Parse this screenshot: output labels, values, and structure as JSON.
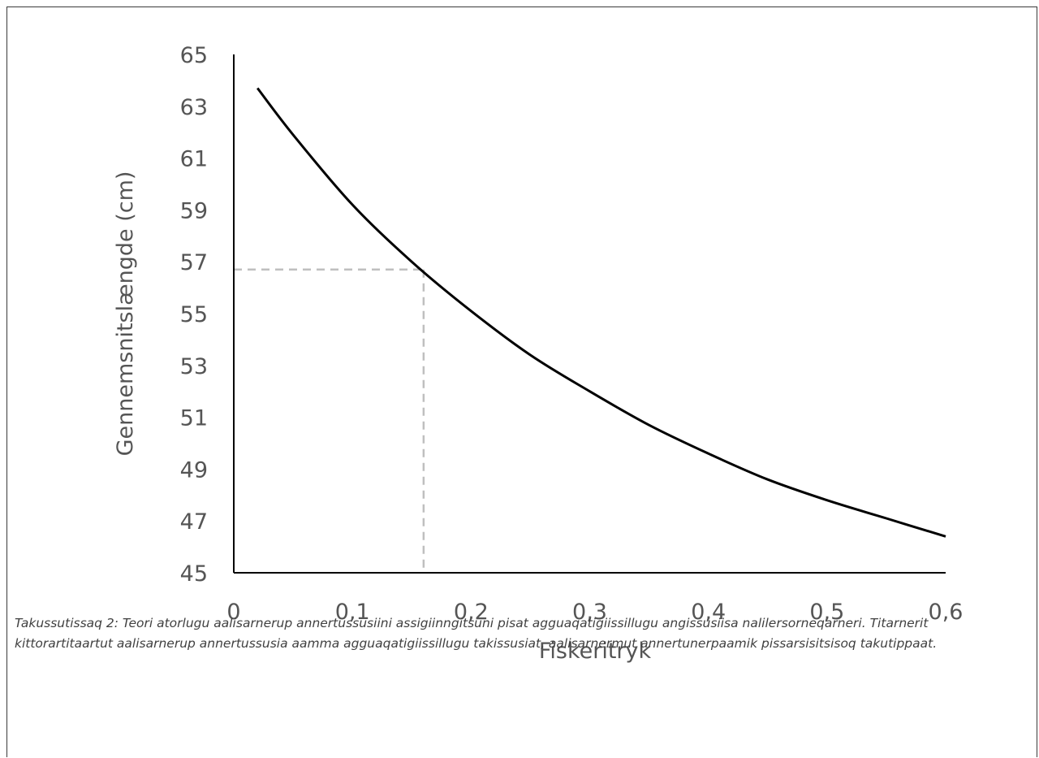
{
  "chart_data": {
    "type": "line",
    "xlabel": "Fiskeritryk",
    "ylabel": "Gennemsnitslængde (cm)",
    "xlim": [
      0,
      0.6
    ],
    "ylim": [
      45,
      65
    ],
    "x_ticks": [
      0,
      0.1,
      0.2,
      0.3,
      0.4,
      0.5,
      0.6
    ],
    "x_tick_labels": [
      "0",
      "0,1",
      "0,2",
      "0,3",
      "0,4",
      "0,5",
      "0,6"
    ],
    "y_ticks": [
      45,
      47,
      49,
      51,
      53,
      55,
      57,
      59,
      61,
      63,
      65
    ],
    "y_tick_labels": [
      "45",
      "47",
      "49",
      "51",
      "53",
      "55",
      "57",
      "59",
      "61",
      "63",
      "65"
    ],
    "grid": false,
    "legend": "none",
    "series": [
      {
        "x": [
          0.02,
          0.05,
          0.1,
          0.15,
          0.2,
          0.25,
          0.3,
          0.35,
          0.4,
          0.45,
          0.5,
          0.55,
          0.6
        ],
        "y": [
          63.7,
          61.9,
          59.2,
          57.0,
          55.1,
          53.4,
          52.0,
          50.7,
          49.6,
          48.6,
          47.8,
          47.1,
          46.4
        ],
        "color": "#000000"
      }
    ],
    "reference_point": {
      "x": 0.16,
      "y": 56.7,
      "color": "#bfbfbf",
      "style": "dashed"
    }
  },
  "caption": "Takussutissaq 2: Teori atorlugu aalisarnerup annertussusiini assigiinngitsuni pisat agguaqatigiissillugu angissusiisa nalilersorneqarneri. Titarnerit kittorartitaartut aalisarnerup annertussusia aamma agguaqatigiissillugu takissusiat, aalisarnermut annertunerpaamik pissarsisitsisoq takutippaat."
}
